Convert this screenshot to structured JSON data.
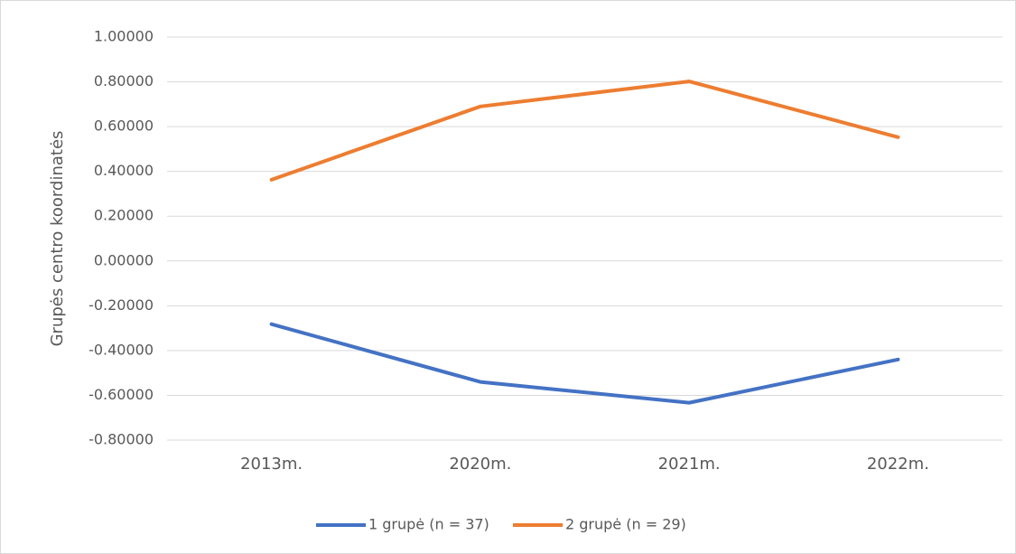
{
  "chart_data": {
    "type": "line",
    "y_label": "Grupės centro koordinatės",
    "categories": [
      "2013m.",
      "2020m.",
      "2021m.",
      "2022m."
    ],
    "series": [
      {
        "name": "1 grupė (n = 37)",
        "color": "#4472c4",
        "values": [
          -0.282,
          -0.54,
          -0.633,
          -0.44
        ]
      },
      {
        "name": "2 grupė (n = 29)",
        "color": "#ed7d31",
        "values": [
          0.363,
          0.69,
          0.802,
          0.553
        ]
      }
    ],
    "ylim": [
      -0.8,
      1.0
    ],
    "yticks": [
      {
        "value": -0.8,
        "label": "-0.80000"
      },
      {
        "value": -0.6,
        "label": "-0.60000"
      },
      {
        "value": -0.4,
        "label": "-0.40000"
      },
      {
        "value": -0.2,
        "label": "-0.20000"
      },
      {
        "value": 0,
        "label": "0.00000"
      },
      {
        "value": 0.2,
        "label": "0.20000"
      },
      {
        "value": 0.4,
        "label": "0.40000"
      },
      {
        "value": 0.6,
        "label": "0.60000"
      },
      {
        "value": 0.8,
        "label": "0.80000"
      },
      {
        "value": 1.0,
        "label": "1.00000"
      }
    ],
    "grid": true,
    "legend": "bottom"
  }
}
